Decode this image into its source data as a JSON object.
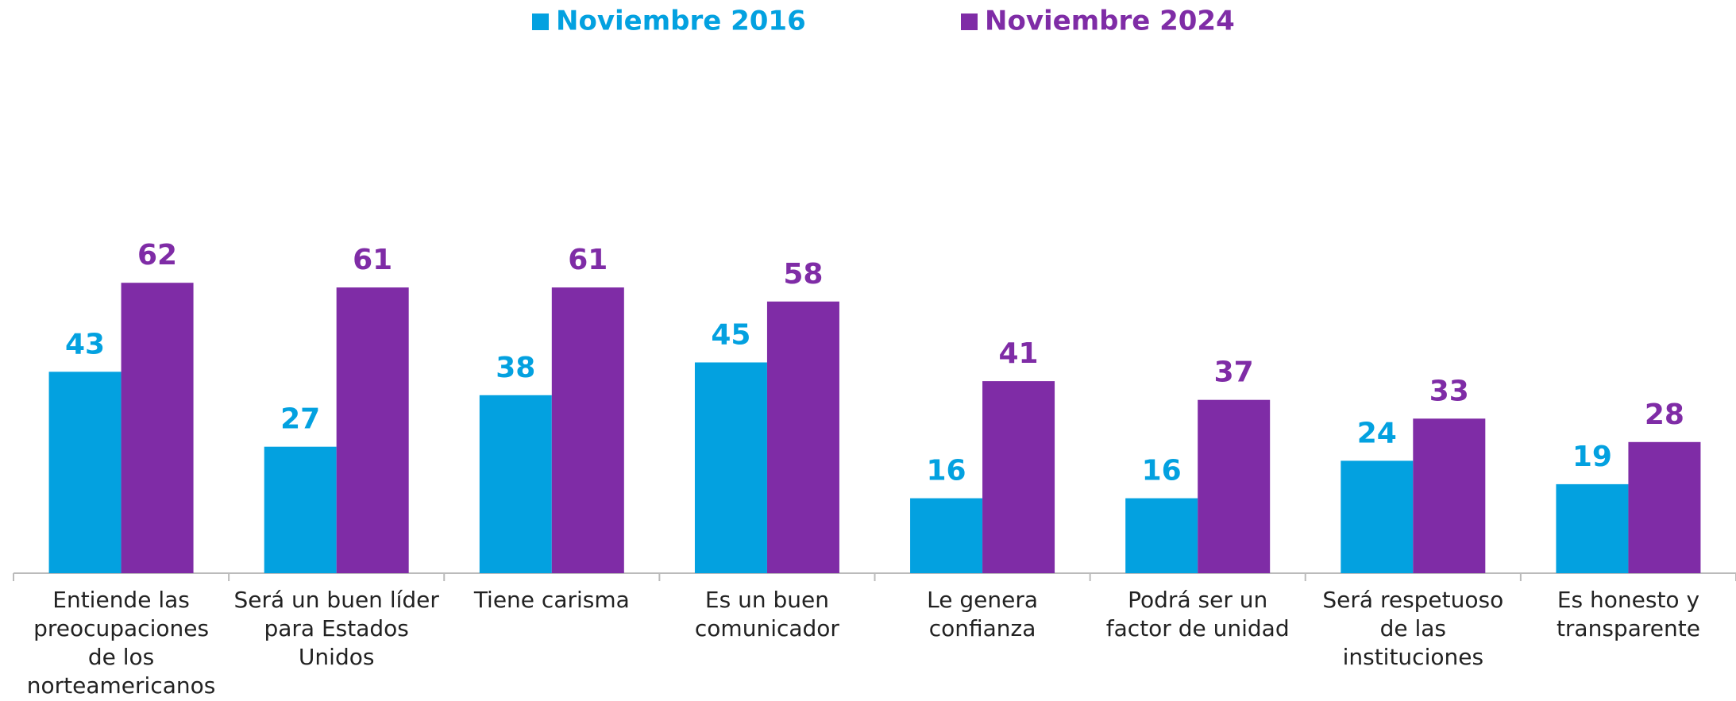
{
  "chart_data": {
    "type": "bar",
    "categories": [
      "Entiende las preocupaciones de los norteamericanos",
      "Será un buen líder para Estados Unidos",
      "Tiene carisma",
      "Es un buen comunicador",
      "Le genera confianza",
      "Podrá ser un factor de unidad",
      "Será respetuoso de las instituciones",
      "Es honesto y transparente"
    ],
    "series": [
      {
        "name": "Noviembre 2016",
        "color": "#03a1e0",
        "values": [
          43,
          27,
          38,
          45,
          16,
          16,
          24,
          19
        ]
      },
      {
        "name": "Noviembre 2024",
        "color": "#7f2ca6",
        "values": [
          62,
          61,
          61,
          58,
          41,
          37,
          33,
          28
        ]
      }
    ],
    "legend": "top"
  }
}
